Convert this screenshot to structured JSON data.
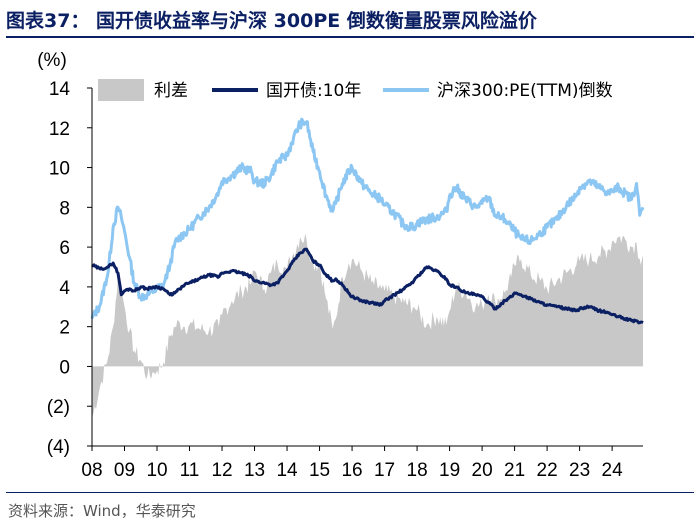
{
  "figure_title": "图表37：  国开债收益率与沪深 300PE 倒数衡量股票风险溢价",
  "source_note": "资料来源：Wind，华泰研究",
  "colors": {
    "title": "#0b1f63",
    "spread": "#c8c8c8",
    "cdb_yield": "#0b1f63",
    "pe_inverse": "#8cc6f2"
  },
  "chart_data": {
    "type": "line",
    "title": "国开债收益率与沪深 300PE 倒数衡量股票风险溢价",
    "ylabel": "(%)",
    "ylim": [
      -4,
      14
    ],
    "yticks": [
      14,
      12,
      10,
      8,
      6,
      4,
      2,
      0,
      -2,
      -4
    ],
    "ytick_labels": [
      "14",
      "12",
      "10",
      "8",
      "6",
      "4",
      "2",
      "0",
      "(2)",
      "(4)"
    ],
    "xlim": [
      2008.0,
      2024.95
    ],
    "xtick_labels": [
      "08",
      "09",
      "10",
      "11",
      "12",
      "13",
      "14",
      "15",
      "16",
      "17",
      "18",
      "19",
      "20",
      "21",
      "22",
      "23",
      "24"
    ],
    "legend_position": "top",
    "x": [
      2008.0,
      2008.25,
      2008.5,
      2008.65,
      2008.8,
      2008.9,
      2009.0,
      2009.15,
      2009.3,
      2009.5,
      2009.7,
      2009.9,
      2010.0,
      2010.2,
      2010.4,
      2010.55,
      2010.7,
      2010.85,
      2011.0,
      2011.3,
      2011.6,
      2011.9,
      2012.0,
      2012.3,
      2012.6,
      2012.9,
      2013.0,
      2013.3,
      2013.5,
      2013.7,
      2013.9,
      2014.0,
      2014.2,
      2014.4,
      2014.6,
      2014.8,
      2015.0,
      2015.2,
      2015.4,
      2015.5,
      2015.7,
      2015.9,
      2016.0,
      2016.3,
      2016.6,
      2016.9,
      2017.0,
      2017.3,
      2017.6,
      2017.9,
      2018.0,
      2018.3,
      2018.6,
      2018.9,
      2019.0,
      2019.2,
      2019.5,
      2019.8,
      2020.0,
      2020.2,
      2020.4,
      2020.7,
      2020.9,
      2021.0,
      2021.2,
      2021.5,
      2021.8,
      2022.0,
      2022.3,
      2022.6,
      2022.9,
      2023.0,
      2023.3,
      2023.6,
      2023.9,
      2024.0,
      2024.2,
      2024.4,
      2024.6,
      2024.75,
      2024.85,
      2024.95
    ],
    "series": [
      {
        "name": "利差",
        "style": "area",
        "values": [
          -2.6,
          -1.0,
          0.5,
          2.0,
          4.5,
          3.8,
          3.0,
          1.8,
          0.8,
          0.3,
          -0.5,
          -0.3,
          -0.2,
          0.2,
          1.5,
          2.0,
          2.2,
          2.0,
          2.1,
          1.9,
          1.8,
          2.0,
          2.6,
          3.3,
          3.8,
          4.2,
          4.8,
          3.9,
          4.7,
          5.2,
          5.0,
          4.9,
          5.7,
          6.5,
          6.4,
          5.2,
          5.1,
          3.4,
          1.9,
          2.4,
          4.5,
          5.2,
          5.4,
          4.8,
          4.2,
          3.9,
          3.8,
          3.5,
          3.2,
          3.0,
          2.8,
          2.1,
          2.5,
          2.1,
          2.8,
          4.0,
          3.7,
          3.0,
          3.1,
          3.6,
          3.3,
          3.7,
          4.5,
          5.1,
          5.4,
          4.6,
          4.3,
          3.9,
          4.3,
          4.7,
          5.1,
          5.3,
          5.4,
          5.6,
          5.9,
          6.3,
          6.5,
          6.4,
          6.0,
          6.2,
          5.4,
          5.6
        ]
      },
      {
        "name": "国开债:10年",
        "style": "line",
        "values": [
          5.1,
          4.9,
          5.0,
          5.2,
          4.7,
          3.6,
          3.8,
          3.9,
          3.8,
          4.0,
          3.9,
          4.0,
          4.0,
          3.9,
          3.6,
          3.7,
          3.9,
          4.1,
          4.2,
          4.4,
          4.6,
          4.5,
          4.7,
          4.8,
          4.7,
          4.5,
          4.3,
          4.2,
          4.1,
          4.2,
          4.6,
          4.8,
          5.3,
          5.7,
          5.9,
          5.3,
          5.1,
          4.6,
          4.3,
          4.4,
          4.1,
          3.7,
          3.5,
          3.3,
          3.2,
          3.1,
          3.3,
          3.6,
          3.9,
          4.3,
          4.5,
          5.0,
          4.8,
          4.4,
          4.1,
          4.0,
          3.7,
          3.6,
          3.5,
          3.2,
          2.9,
          3.3,
          3.5,
          3.7,
          3.6,
          3.4,
          3.2,
          3.1,
          3.0,
          2.9,
          2.8,
          2.9,
          3.0,
          2.8,
          2.7,
          2.6,
          2.5,
          2.4,
          2.3,
          2.3,
          2.2,
          2.2
        ]
      },
      {
        "name": "沪深300:PE(TTM)倒数",
        "style": "line",
        "values": [
          2.4,
          3.1,
          4.8,
          7.0,
          8.0,
          7.5,
          6.8,
          5.5,
          4.2,
          3.5,
          3.6,
          3.8,
          3.9,
          4.1,
          5.1,
          6.2,
          6.5,
          6.7,
          6.9,
          7.5,
          8.0,
          8.8,
          9.3,
          9.6,
          10.0,
          9.8,
          9.3,
          9.2,
          9.6,
          10.3,
          10.5,
          10.6,
          11.5,
          12.2,
          12.3,
          10.8,
          9.8,
          8.6,
          7.8,
          8.2,
          9.2,
          9.8,
          10.0,
          9.2,
          8.7,
          8.4,
          8.1,
          7.7,
          7.1,
          7.0,
          7.2,
          7.4,
          7.5,
          7.8,
          8.6,
          9.0,
          8.4,
          8.0,
          8.2,
          8.5,
          7.6,
          7.4,
          7.0,
          6.8,
          6.4,
          6.3,
          6.7,
          7.0,
          7.4,
          8.1,
          8.6,
          9.0,
          9.3,
          9.0,
          8.7,
          8.8,
          9.0,
          8.7,
          8.4,
          9.2,
          7.6,
          8.0
        ]
      }
    ]
  }
}
